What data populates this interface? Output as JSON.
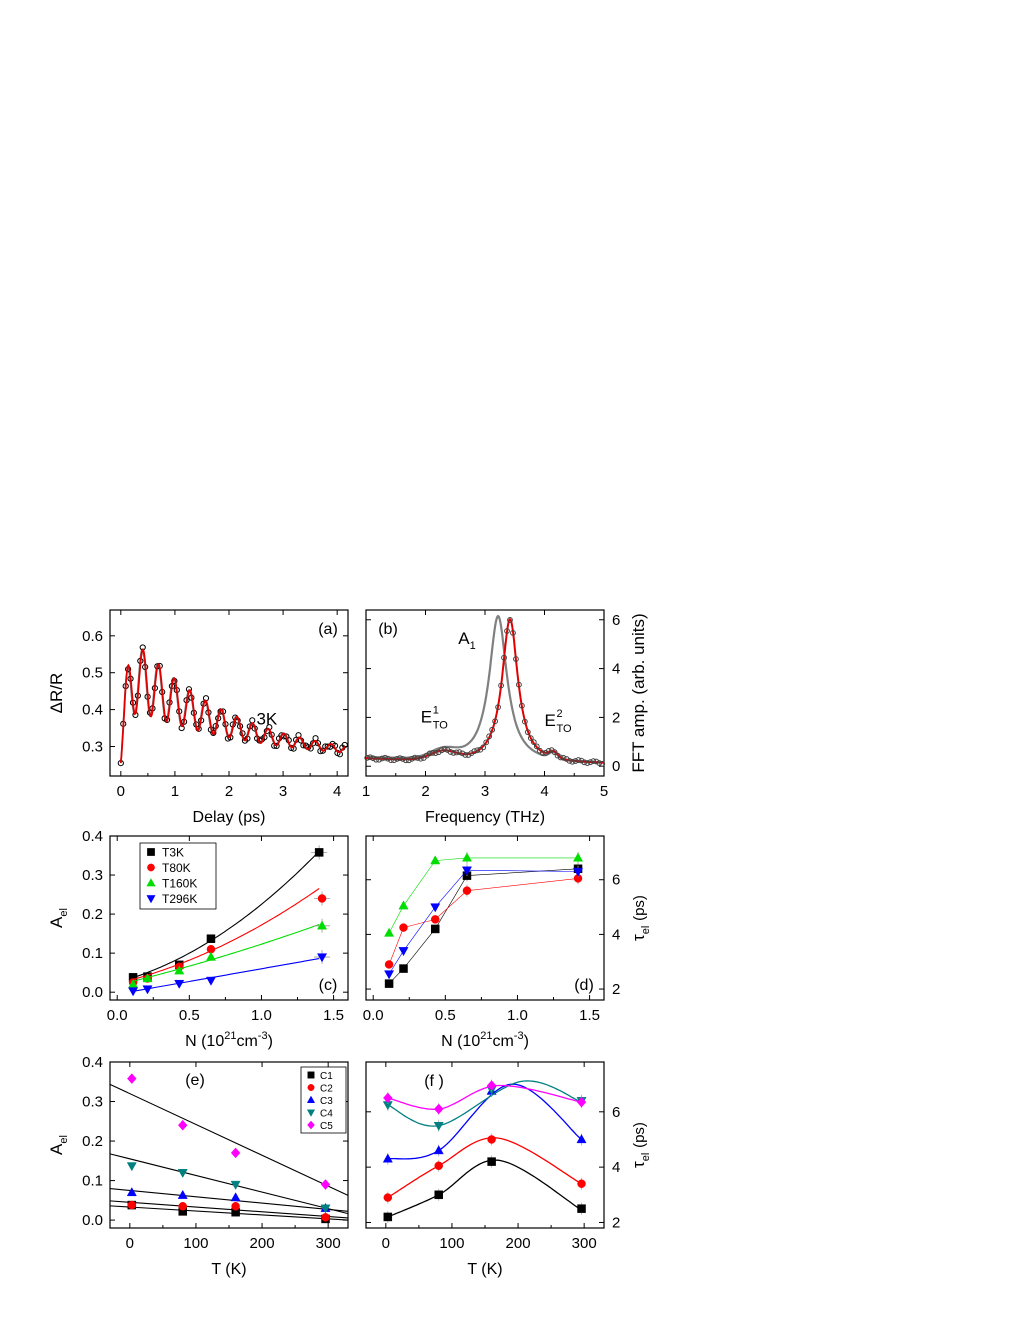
{
  "chart_data": [
    {
      "id": "a",
      "type": "scatter",
      "panel_label": "(a)",
      "annotation": "3K",
      "xlabel": "Delay",
      "xunit": "(ps)",
      "ylabel": "ΔR/R",
      "xlim": [
        -0.2,
        4.2
      ],
      "ylim": [
        0.22,
        0.67
      ],
      "xticks": [
        0,
        1,
        2,
        3,
        4
      ],
      "yticks": [
        0.3,
        0.4,
        0.5,
        0.6
      ],
      "signal": {
        "offset": 0.255,
        "decay_amp": 0.16,
        "decay_tau": 2.4,
        "osc_amp": 0.23,
        "osc_tau": 1.6,
        "freq_thz": 3.45,
        "rise_time": 0.1
      },
      "series": [
        {
          "label": "data",
          "marker": "open-circle",
          "color": "#000000"
        },
        {
          "label": "fit-gray",
          "style": "line",
          "color": "#808080"
        },
        {
          "label": "fit-red",
          "style": "line",
          "color": "#e00000"
        }
      ]
    },
    {
      "id": "b",
      "type": "line",
      "panel_label": "(b)",
      "xlabel": "Frequency",
      "xunit": "(THz)",
      "ylabel": "FFT amp.  (arb. units)",
      "xlim": [
        1,
        5
      ],
      "ylim": [
        -0.4,
        6.4
      ],
      "y_axis_side": "right",
      "xticks": [
        1,
        2,
        3,
        4,
        5
      ],
      "yticks": [
        0,
        2,
        4,
        6
      ],
      "peaks": [
        {
          "label": "A1",
          "base": "A",
          "sub": "1"
        },
        {
          "label": "E1TO",
          "base": "E",
          "sup": "1",
          "sub": "TO"
        },
        {
          "label": "E2TO",
          "base": "E",
          "sup": "2",
          "sub": "TO"
        }
      ],
      "series": [
        {
          "label": "gray",
          "color": "#808080",
          "peak_x": 3.22,
          "peak_y": 6.0,
          "width": 0.27,
          "bg": 0.3
        },
        {
          "label": "red",
          "color": "#e00000",
          "peak_x": 3.42,
          "peak_y": 5.9,
          "width": 0.24,
          "bg": 0.25
        },
        {
          "label": "data",
          "marker": "open-circle",
          "color": "#000000"
        }
      ]
    },
    {
      "id": "c",
      "type": "scatter",
      "panel_label": "(c)",
      "xlabel": "N",
      "xunit": "(10",
      "xunit_sup1": "21",
      "xunit_mid": "cm",
      "xunit_sup2": "-3",
      "xunit_end": ")",
      "ylabel": "A",
      "ylabel_sub": "el",
      "xlim": [
        -0.05,
        1.6
      ],
      "ylim": [
        -0.02,
        0.4
      ],
      "xticks": [
        0.0,
        0.5,
        1.0,
        1.5
      ],
      "yticks": [
        0.0,
        0.1,
        0.2,
        0.3,
        0.4
      ],
      "legend_position": "top-left",
      "series": [
        {
          "name": "T3K",
          "color": "#000000",
          "marker": "square",
          "x": [
            0.11,
            0.21,
            0.43,
            0.65,
            1.4
          ],
          "y": [
            0.038,
            0.04,
            0.07,
            0.137,
            0.358
          ],
          "fit": [
            0.025,
            0.1,
            0.1
          ]
        },
        {
          "name": "T80K",
          "color": "#ff0000",
          "marker": "circle",
          "x": [
            0.11,
            0.21,
            0.43,
            0.65,
            1.42
          ],
          "y": [
            0.025,
            0.035,
            0.065,
            0.11,
            0.24
          ],
          "fit": [
            0.022,
            0.09,
            0.06
          ]
        },
        {
          "name": "T160K",
          "color": "#00dd00",
          "marker": "triangle-up",
          "x": [
            0.11,
            0.21,
            0.43,
            0.65,
            1.42
          ],
          "y": [
            0.02,
            0.035,
            0.055,
            0.09,
            0.17
          ],
          "fit": [
            0.018,
            0.09,
            0.015
          ]
        },
        {
          "name": "T296K",
          "color": "#0000ff",
          "marker": "triangle-down",
          "x": [
            0.11,
            0.21,
            0.43,
            0.65,
            1.42
          ],
          "y": [
            0.003,
            0.008,
            0.022,
            0.03,
            0.09
          ],
          "fit": [
            -0.005,
            0.065,
            0.0
          ]
        }
      ]
    },
    {
      "id": "d",
      "type": "line",
      "panel_label": "(d)",
      "xlabel": "N",
      "xunit": "(10",
      "xunit_sup1": "21",
      "xunit_mid": "cm",
      "xunit_sup2": "-3",
      "xunit_end": ")",
      "ylabel": "τ",
      "ylabel_sub": "el",
      "yunit": "(ps)",
      "y_axis_side": "right",
      "xlim": [
        -0.05,
        1.6
      ],
      "ylim": [
        1.6,
        7.6
      ],
      "xticks": [
        0.0,
        0.5,
        1.0,
        1.5
      ],
      "yticks": [
        2,
        4,
        6
      ],
      "series": [
        {
          "name": "T3K",
          "color": "#000000",
          "marker": "square",
          "x": [
            0.11,
            0.21,
            0.43,
            0.65,
            1.42
          ],
          "y": [
            2.2,
            2.75,
            4.2,
            6.15,
            6.4
          ]
        },
        {
          "name": "T80K",
          "color": "#ff0000",
          "marker": "circle",
          "x": [
            0.11,
            0.21,
            0.43,
            0.65,
            1.42
          ],
          "y": [
            2.9,
            4.25,
            4.55,
            5.6,
            6.05
          ]
        },
        {
          "name": "T160K",
          "color": "#00dd00",
          "marker": "triangle-up",
          "x": [
            0.11,
            0.21,
            0.43,
            0.65,
            1.42
          ],
          "y": [
            4.05,
            5.05,
            6.7,
            6.8,
            6.8
          ]
        },
        {
          "name": "T296K",
          "color": "#0000ff",
          "marker": "triangle-down",
          "x": [
            0.11,
            0.21,
            0.43,
            0.65,
            1.42
          ],
          "y": [
            2.55,
            3.4,
            5.0,
            6.35,
            6.3
          ]
        }
      ]
    },
    {
      "id": "e",
      "type": "scatter",
      "panel_label": "(e)",
      "xlabel": "T",
      "xunit": "(K)",
      "ylabel": "A",
      "ylabel_sub": "el",
      "xlim": [
        -30,
        330
      ],
      "ylim": [
        -0.02,
        0.4
      ],
      "xticks": [
        0,
        100,
        200,
        300
      ],
      "yticks": [
        0.0,
        0.1,
        0.2,
        0.3,
        0.4
      ],
      "legend_position": "top-right",
      "series": [
        {
          "name": "C1",
          "color": "#000000",
          "marker": "square",
          "x": [
            3,
            80,
            160,
            296
          ],
          "y": [
            0.038,
            0.022,
            0.02,
            0.003
          ],
          "fit": [
            0.033,
            -0.0001
          ]
        },
        {
          "name": "C2",
          "color": "#ff0000",
          "marker": "circle",
          "x": [
            3,
            80,
            160,
            296
          ],
          "y": [
            0.038,
            0.035,
            0.035,
            0.007
          ],
          "fit": [
            0.045,
            -0.00012
          ]
        },
        {
          "name": "C3",
          "color": "#0000ff",
          "marker": "triangle-up",
          "x": [
            3,
            80,
            160,
            296
          ],
          "y": [
            0.07,
            0.063,
            0.057,
            0.03
          ],
          "fit": [
            0.075,
            -0.00016
          ]
        },
        {
          "name": "C4",
          "color": "#008080",
          "marker": "triangle-down",
          "x": [
            3,
            80,
            160,
            296
          ],
          "y": [
            0.137,
            0.12,
            0.09,
            0.03
          ],
          "fit": [
            0.155,
            -0.00042
          ]
        },
        {
          "name": "C5",
          "color": "#ff00ff",
          "marker": "diamond",
          "x": [
            3,
            80,
            160,
            296
          ],
          "y": [
            0.358,
            0.24,
            0.17,
            0.09
          ],
          "fit": [
            0.32,
            -0.00078
          ]
        }
      ]
    },
    {
      "id": "f",
      "type": "line",
      "panel_label": "(f )",
      "xlabel": "T",
      "xunit": "(K)",
      "ylabel": "τ",
      "ylabel_sub": "el",
      "yunit": "(ps)",
      "y_axis_side": "right",
      "xlim": [
        -30,
        330
      ],
      "ylim": [
        1.8,
        7.8
      ],
      "xticks": [
        0,
        100,
        200,
        300
      ],
      "yticks": [
        2,
        4,
        6
      ],
      "series": [
        {
          "name": "C1",
          "color": "#000000",
          "marker": "square",
          "x": [
            3,
            80,
            160,
            296
          ],
          "y": [
            2.2,
            3.0,
            4.2,
            2.5
          ],
          "curve": [
            [
              3,
              2.2
            ],
            [
              80,
              3.0
            ],
            [
              170,
              4.25
            ],
            [
              296,
              2.45
            ]
          ]
        },
        {
          "name": "C2",
          "color": "#ff0000",
          "marker": "circle",
          "x": [
            3,
            80,
            160,
            296
          ],
          "y": [
            2.9,
            4.05,
            5.0,
            3.4
          ],
          "curve": [
            [
              3,
              2.9
            ],
            [
              80,
              4.05
            ],
            [
              170,
              5.05
            ],
            [
              296,
              3.4
            ]
          ]
        },
        {
          "name": "C3",
          "color": "#0000ff",
          "marker": "triangle-up",
          "x": [
            3,
            80,
            160,
            296
          ],
          "y": [
            4.3,
            4.6,
            6.75,
            5.0
          ],
          "curve": [
            [
              3,
              4.3
            ],
            [
              80,
              4.6
            ],
            [
              190,
              7.0
            ],
            [
              296,
              5.0
            ]
          ]
        },
        {
          "name": "C4",
          "color": "#008080",
          "marker": "triangle-down",
          "x": [
            3,
            80,
            160,
            296
          ],
          "y": [
            6.25,
            5.5,
            6.8,
            6.4
          ],
          "curve": [
            [
              3,
              6.25
            ],
            [
              80,
              5.5
            ],
            [
              205,
              7.1
            ],
            [
              296,
              6.35
            ]
          ]
        },
        {
          "name": "C5",
          "color": "#ff00ff",
          "marker": "diamond",
          "x": [
            3,
            80,
            160,
            296
          ],
          "y": [
            6.5,
            6.1,
            6.95,
            6.35
          ],
          "curve": [
            [
              3,
              6.5
            ],
            [
              80,
              6.1
            ],
            [
              170,
              6.95
            ],
            [
              296,
              6.35
            ]
          ]
        }
      ]
    }
  ]
}
